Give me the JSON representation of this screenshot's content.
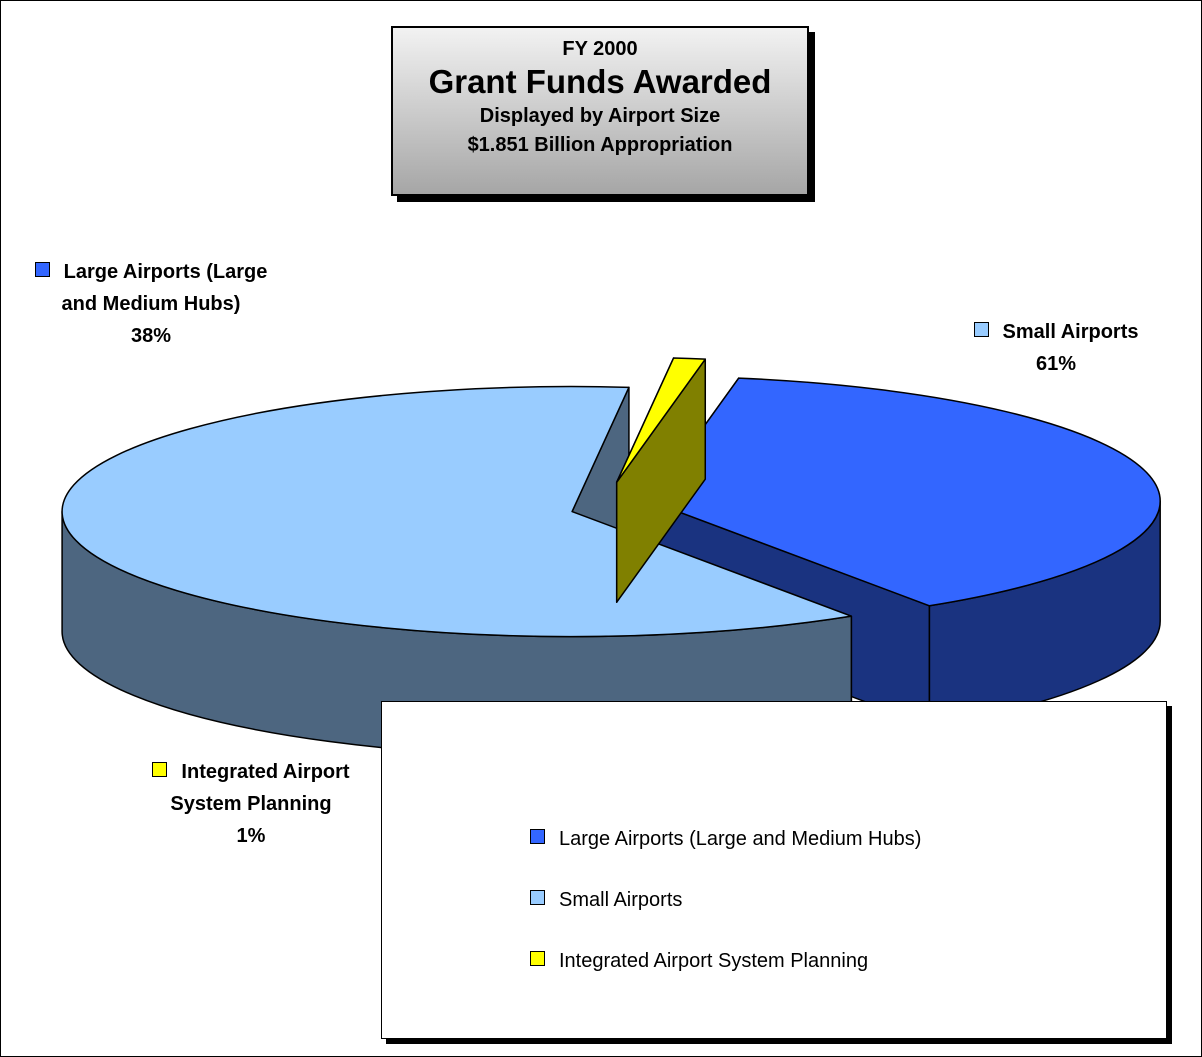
{
  "chart_data": {
    "type": "pie",
    "supertitle": "FY 2000",
    "title": "Grant Funds Awarded",
    "subtitle": [
      "Displayed by Airport Size",
      "$1.851 Billion Appropriation"
    ],
    "categories": [
      "Large Airports (Large and Medium Hubs)",
      "Small Airports",
      "Integrated Airport System Planning"
    ],
    "values": [
      38,
      61,
      1
    ],
    "value_labels": [
      "38%",
      "61%",
      "1%"
    ],
    "colors": [
      "#3366ff",
      "#99ccff",
      "#ffff00"
    ],
    "legend": "bottom-right"
  }
}
